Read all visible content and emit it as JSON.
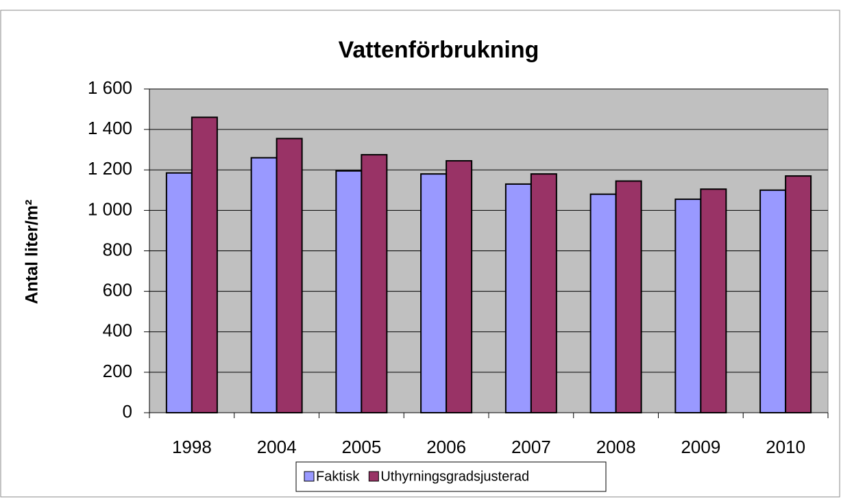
{
  "chart_data": {
    "type": "bar",
    "title": "Vattenförbrukning",
    "y_label": "Antal liter/m²",
    "categories": [
      "1998",
      "2004",
      "2005",
      "2006",
      "2007",
      "2008",
      "2009",
      "2010"
    ],
    "series": [
      {
        "name": "Faktisk",
        "color": "#9999ff",
        "values": [
          1185,
          1260,
          1195,
          1180,
          1130,
          1080,
          1055,
          1100
        ]
      },
      {
        "name": "Uthyrningsgradsjusterad",
        "color": "#993366",
        "values": [
          1460,
          1355,
          1275,
          1245,
          1180,
          1145,
          1105,
          1170
        ]
      }
    ],
    "ylim": [
      0,
      1600
    ],
    "yticks": [
      0,
      200,
      400,
      600,
      800,
      {
        "value": 1000,
        "label": "1 000"
      },
      {
        "value": 1200,
        "label": "1 200"
      },
      {
        "value": 1400,
        "label": "1 400"
      },
      {
        "value": 1600,
        "label": "1 600"
      }
    ],
    "grid": true,
    "legend": "bottom",
    "plot_background": "#c0c0c0"
  }
}
